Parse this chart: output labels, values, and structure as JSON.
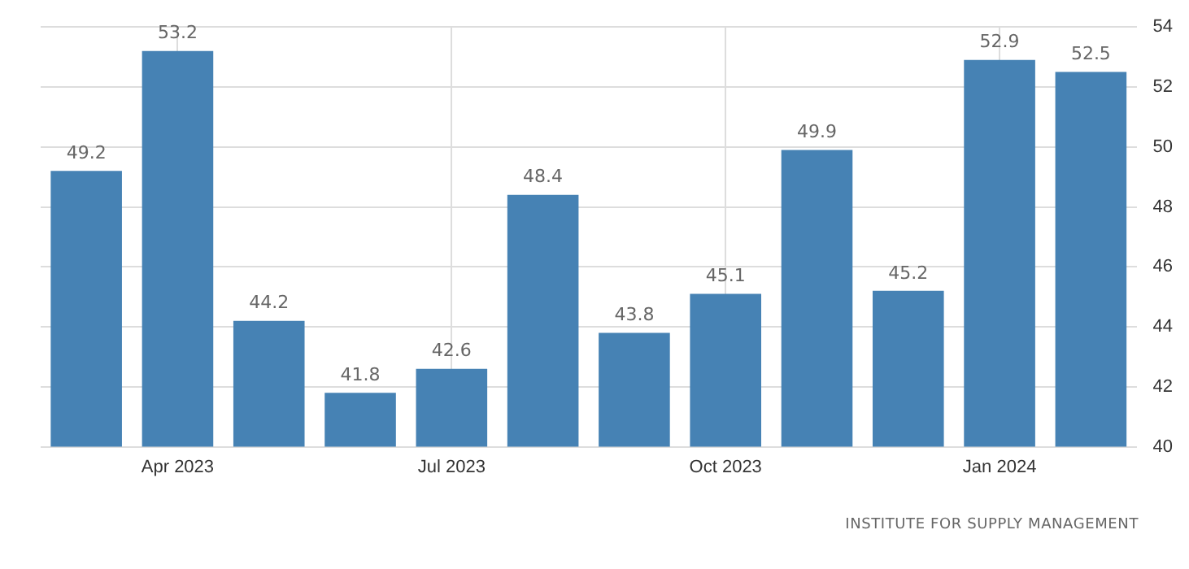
{
  "chart_data": {
    "type": "bar",
    "categories": [
      null,
      "Apr 2023",
      null,
      null,
      "Jul 2023",
      null,
      null,
      "Oct 2023",
      null,
      null,
      "Jan 2024",
      null
    ],
    "values": [
      49.2,
      53.2,
      44.2,
      41.8,
      42.6,
      48.4,
      43.8,
      45.1,
      49.9,
      45.2,
      52.9,
      52.5
    ],
    "color": "#4682b4",
    "ylim": [
      40,
      54
    ],
    "yticks": [
      40,
      42,
      44,
      46,
      48,
      50,
      52,
      54
    ],
    "grid": true,
    "data_labels": true,
    "annotations": [
      "INSTITUTE FOR SUPPLY MANAGEMENT"
    ]
  }
}
